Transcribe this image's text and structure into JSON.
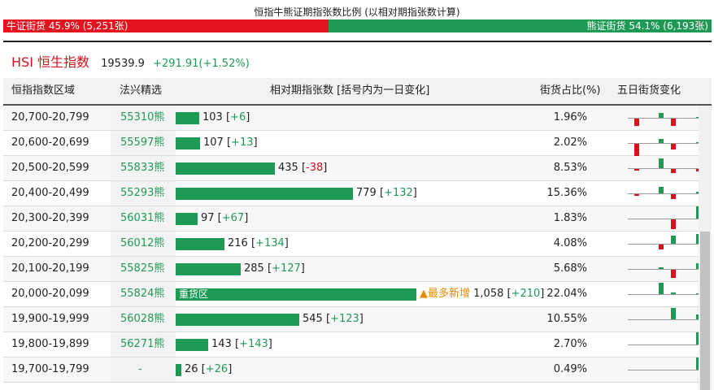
{
  "title": "恒指牛熊证期指张数比例 (以相对期指张数计算)",
  "ratio": {
    "bull_label": "牛证街货 45.9% (5,251张)",
    "bear_label": "熊证街货 54.1% (6,193张)",
    "bull_pct": 45.9,
    "bear_pct": 54.1,
    "bull_color": "#e3141f",
    "bear_color": "#1e9a55"
  },
  "index": {
    "name": "HSI 恒生指数",
    "value": "19539.9",
    "change": "+291.91(+1.52%)"
  },
  "headers": {
    "range": "恒指指数区域",
    "pick": "法兴精选",
    "contracts": "相对期指张数 [括号内为一日变化]",
    "pct": "街货占比(%)",
    "five_day": "五日街货变化"
  },
  "rows": [
    {
      "range": "20,700-20,799",
      "code": "55310熊",
      "value": 103,
      "value_text": "103",
      "change": "+6",
      "change_dir": "up",
      "pct": "1.96%",
      "spark": [
        0,
        -9,
        0,
        6,
        -9,
        0,
        1
      ]
    },
    {
      "range": "20,600-20,699",
      "code": "55597熊",
      "value": 107,
      "value_text": "107",
      "change": "+13",
      "change_dir": "up",
      "pct": "2.02%",
      "spark": [
        0,
        -16,
        0,
        5,
        -7,
        0,
        1
      ]
    },
    {
      "range": "20,500-20,599",
      "code": "55833熊",
      "value": 435,
      "value_text": "435",
      "change": "-38",
      "change_dir": "down",
      "pct": "8.53%",
      "spark": [
        0,
        -2,
        0,
        12,
        -5,
        0,
        -3
      ]
    },
    {
      "range": "20,400-20,499",
      "code": "55293熊",
      "value": 779,
      "value_text": "779",
      "change": "+132",
      "change_dir": "up",
      "pct": "15.36%",
      "spark": [
        0,
        -2,
        0,
        8,
        -6,
        0,
        2
      ]
    },
    {
      "range": "20,300-20,399",
      "code": "56031熊",
      "value": 97,
      "value_text": "97",
      "change": "+67",
      "change_dir": "up",
      "pct": "1.83%",
      "spark": [
        0,
        0,
        0,
        0,
        -12,
        0,
        15
      ]
    },
    {
      "range": "20,200-20,299",
      "code": "56012熊",
      "value": 216,
      "value_text": "216",
      "change": "+134",
      "change_dir": "up",
      "pct": "4.08%",
      "spark": [
        0,
        0,
        0,
        -6,
        10,
        0,
        12
      ]
    },
    {
      "range": "20,100-20,199",
      "code": "55825熊",
      "value": 285,
      "value_text": "285",
      "change": "+127",
      "change_dir": "up",
      "pct": "5.68%",
      "spark": [
        0,
        0,
        0,
        2,
        -10,
        0,
        7
      ]
    },
    {
      "range": "20,000-20,099",
      "code": "55824熊",
      "value": 1058,
      "value_text": "1,058",
      "change": "+210",
      "change_dir": "up",
      "pct": "22.04%",
      "bar_label": "重货区",
      "tag": "▲最多新增",
      "spark": [
        0,
        0,
        0,
        14,
        2,
        0,
        1
      ]
    },
    {
      "range": "19,900-19,999",
      "code": "56028熊",
      "value": 545,
      "value_text": "545",
      "change": "+123",
      "change_dir": "up",
      "pct": "10.55%",
      "spark": [
        0,
        0,
        0,
        0,
        14,
        0,
        6
      ]
    },
    {
      "range": "19,800-19,899",
      "code": "56271熊",
      "value": 143,
      "value_text": "143",
      "change": "+143",
      "change_dir": "up",
      "pct": "2.70%",
      "spark": [
        0,
        0,
        0,
        0,
        0,
        0,
        15
      ]
    },
    {
      "range": "19,700-19,799",
      "code": "-",
      "value": 26,
      "value_text": "26",
      "change": "+26",
      "change_dir": "up",
      "pct": "0.49%",
      "spark": [
        0,
        0,
        0,
        0,
        0,
        0,
        15
      ]
    }
  ]
}
